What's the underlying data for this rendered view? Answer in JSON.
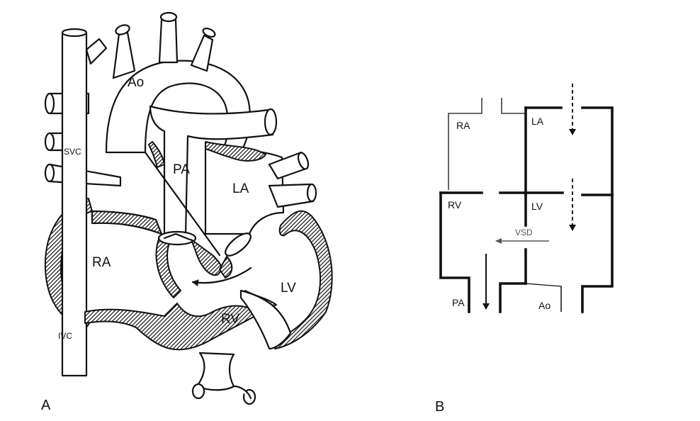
{
  "panel_a": {
    "panel_label": "A",
    "labels": {
      "ao": "Ao",
      "svc": "SVC",
      "pa": "PA",
      "la": "LA",
      "ra": "RA",
      "lv": "LV",
      "rv": "RV",
      "ivc": "IVC"
    }
  },
  "panel_b": {
    "panel_label": "B",
    "labels": {
      "ra": "RA",
      "la": "LA",
      "rv": "RV",
      "lv": "LV",
      "vsd": "VSD",
      "pa": "PA",
      "ao": "Ao"
    }
  },
  "colors": {
    "ink": "#111111",
    "background": "#ffffff",
    "vsd_arrow": "#555555"
  }
}
